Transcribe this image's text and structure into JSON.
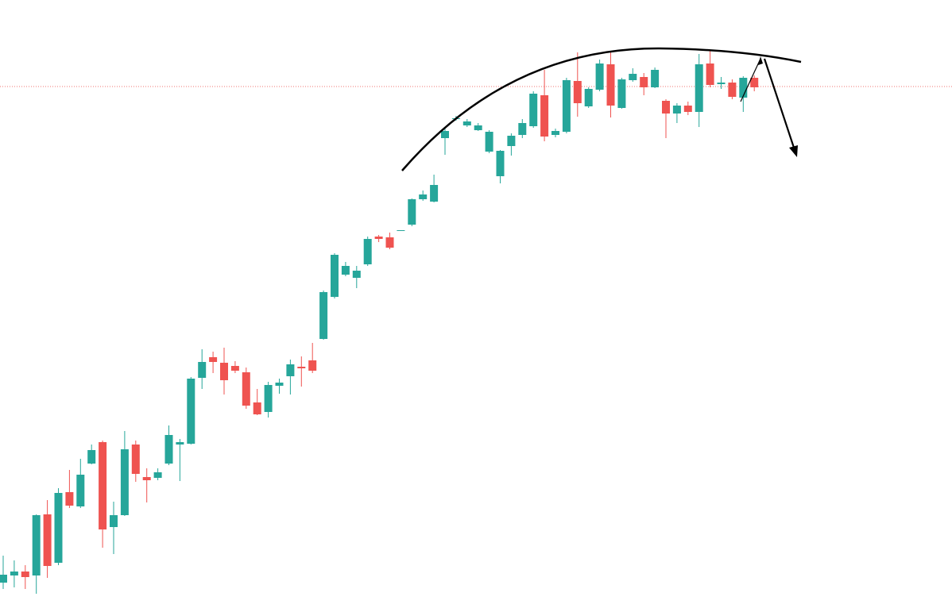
{
  "chart_data": {
    "type": "candlestick",
    "up_color": "#26a69a",
    "down_color": "#ef5350",
    "price_line": 662,
    "price_line_color": "#ef5350",
    "ylim": [
      0,
      771
    ],
    "open": [
      37,
      46,
      51,
      46,
      123,
      62,
      151,
      133,
      187,
      214,
      107,
      122,
      211,
      170,
      169,
      187,
      211,
      212,
      295,
      321,
      314,
      310,
      302,
      264,
      252,
      285,
      297,
      309,
      317,
      344,
      397,
      425,
      421,
      438,
      473,
      472,
      480,
      488,
      520,
      517,
      597,
      621,
      613,
      607,
      580,
      549,
      587,
      601,
      612,
      651,
      601,
      605,
      669,
      637,
      658,
      690,
      635,
      670,
      674,
      661,
      644,
      628,
      638,
      630,
      691,
      665,
      667,
      648,
      673
    ],
    "high": [
      71,
      65,
      59,
      123,
      141,
      156,
      179,
      193,
      211,
      216,
      139,
      228,
      216,
      181,
      181,
      235,
      218,
      296,
      331,
      328,
      333,
      316,
      308,
      281,
      290,
      294,
      318,
      322,
      339,
      405,
      452,
      441,
      436,
      473,
      475,
      478,
      481,
      521,
      531,
      551,
      611,
      625,
      621,
      616,
      607,
      582,
      603,
      621,
      656,
      683,
      609,
      673,
      705,
      661,
      696,
      707,
      673,
      685,
      679,
      686,
      646,
      641,
      643,
      703,
      707,
      674,
      671,
      675,
      676
    ],
    "low": [
      29,
      31,
      29,
      23,
      43,
      59,
      131,
      131,
      186,
      81,
      73,
      121,
      164,
      138,
      166,
      185,
      165,
      211,
      281,
      301,
      274,
      301,
      256,
      248,
      245,
      275,
      274,
      284,
      301,
      343,
      395,
      423,
      408,
      436,
      466,
      457,
      480,
      486,
      518,
      516,
      576,
      619,
      611,
      606,
      578,
      540,
      575,
      597,
      610,
      593,
      598,
      603,
      624,
      635,
      656,
      623,
      634,
      668,
      651,
      660,
      597,
      616,
      626,
      611,
      661,
      659,
      646,
      630,
      656
    ],
    "close": [
      47,
      51,
      44,
      122,
      58,
      150,
      134,
      173,
      204,
      104,
      122,
      205,
      174,
      166,
      176,
      223,
      214,
      294,
      315,
      315,
      292,
      304,
      260,
      249,
      286,
      289,
      312,
      307,
      304,
      403,
      450,
      436,
      430,
      470,
      470,
      459,
      481,
      520,
      526,
      538,
      606,
      622,
      618,
      613,
      605,
      581,
      600,
      616,
      653,
      599,
      606,
      670,
      641,
      659,
      691,
      638,
      671,
      678,
      661,
      683,
      628,
      638,
      630,
      690,
      664,
      667,
      649,
      673,
      661
    ]
  }
}
